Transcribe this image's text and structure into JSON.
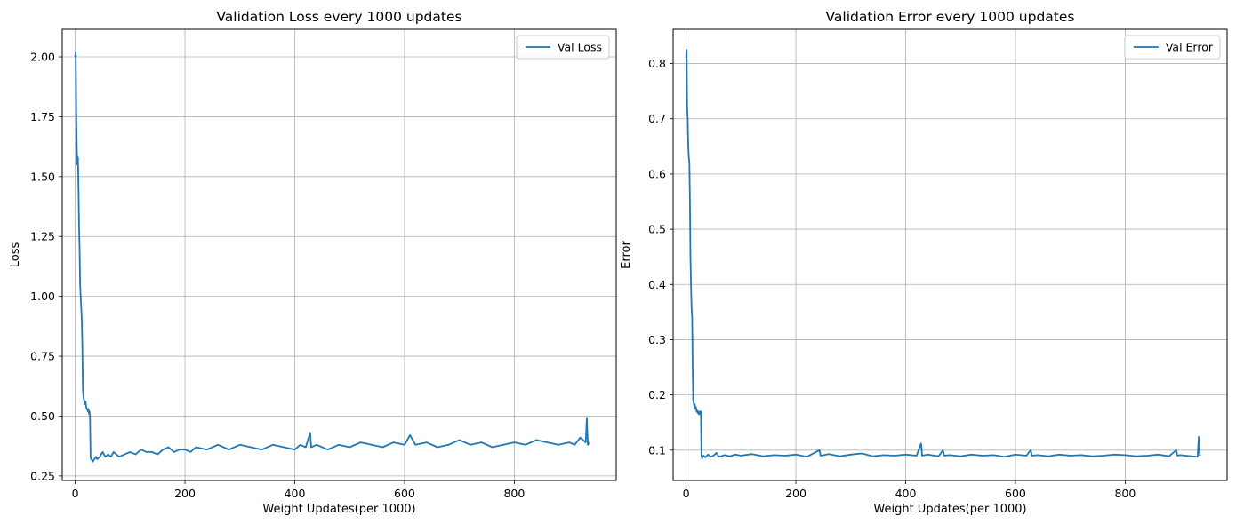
{
  "chart_data": [
    {
      "type": "line",
      "title": "Validation Loss every 1000 updates",
      "xlabel": "Weight Updates(per 1000)",
      "ylabel": "Loss",
      "xlim": [
        -23.6,
        985.6
      ],
      "ylim": [
        0.231,
        2.115
      ],
      "xticks": [
        0,
        200,
        400,
        600,
        800
      ],
      "xtick_labels": [
        "0",
        "200",
        "400",
        "600",
        "800"
      ],
      "yticks": [
        0.25,
        0.5,
        0.75,
        1.0,
        1.25,
        1.5,
        1.75,
        2.0
      ],
      "ytick_labels": [
        "0.25",
        "0.50",
        "0.75",
        "1.00",
        "1.25",
        "1.50",
        "1.75",
        "2.00"
      ],
      "grid": true,
      "legend_position": "upper right",
      "color": "#1f77b4",
      "series": [
        {
          "name": "Val Loss",
          "x": [
            0,
            1,
            2,
            3,
            4,
            5,
            6,
            7,
            8,
            9,
            10,
            11,
            12,
            13,
            14,
            15,
            16,
            17,
            18,
            19,
            20,
            21,
            22,
            23,
            24,
            25,
            26,
            27,
            28,
            29,
            30,
            32,
            35,
            38,
            40,
            45,
            50,
            55,
            60,
            65,
            70,
            75,
            80,
            90,
            100,
            110,
            120,
            130,
            140,
            150,
            160,
            170,
            180,
            190,
            200,
            210,
            220,
            240,
            250,
            260,
            280,
            300,
            320,
            340,
            360,
            380,
            400,
            410,
            420,
            428,
            430,
            440,
            460,
            480,
            500,
            520,
            540,
            560,
            580,
            600,
            610,
            620,
            640,
            660,
            680,
            700,
            720,
            740,
            760,
            780,
            800,
            820,
            840,
            860,
            880,
            900,
            910,
            920,
            930,
            932,
            934,
            936
          ],
          "y": [
            2.0,
            2.02,
            1.75,
            1.62,
            1.55,
            1.58,
            1.45,
            1.3,
            1.2,
            1.05,
            1.0,
            0.95,
            0.9,
            0.8,
            0.62,
            0.58,
            0.57,
            0.56,
            0.55,
            0.56,
            0.54,
            0.53,
            0.53,
            0.52,
            0.53,
            0.51,
            0.52,
            0.5,
            0.33,
            0.32,
            0.32,
            0.31,
            0.32,
            0.33,
            0.32,
            0.33,
            0.35,
            0.33,
            0.34,
            0.33,
            0.35,
            0.34,
            0.33,
            0.34,
            0.35,
            0.34,
            0.36,
            0.35,
            0.35,
            0.34,
            0.36,
            0.37,
            0.35,
            0.36,
            0.36,
            0.35,
            0.37,
            0.36,
            0.37,
            0.38,
            0.36,
            0.38,
            0.37,
            0.36,
            0.38,
            0.37,
            0.36,
            0.38,
            0.37,
            0.43,
            0.37,
            0.38,
            0.36,
            0.38,
            0.37,
            0.39,
            0.38,
            0.37,
            0.39,
            0.38,
            0.42,
            0.38,
            0.39,
            0.37,
            0.38,
            0.4,
            0.38,
            0.39,
            0.37,
            0.38,
            0.39,
            0.38,
            0.4,
            0.39,
            0.38,
            0.39,
            0.38,
            0.41,
            0.39,
            0.49,
            0.38,
            0.39
          ]
        }
      ]
    },
    {
      "type": "line",
      "title": "Validation Error every 1000 updates",
      "xlabel": "Weight Updates(per 1000)",
      "ylabel": "Error",
      "xlim": [
        -23.6,
        985.6
      ],
      "ylim": [
        0.045,
        0.862
      ],
      "xticks": [
        0,
        200,
        400,
        600,
        800
      ],
      "xtick_labels": [
        "0",
        "200",
        "400",
        "600",
        "800"
      ],
      "yticks": [
        0.1,
        0.2,
        0.3,
        0.4,
        0.5,
        0.6,
        0.7,
        0.8
      ],
      "ytick_labels": [
        "0.1",
        "0.2",
        "0.3",
        "0.4",
        "0.5",
        "0.6",
        "0.7",
        "0.8"
      ],
      "grid": true,
      "legend_position": "upper right",
      "color": "#1f77b4",
      "series": [
        {
          "name": "Val Error",
          "x": [
            0,
            1,
            2,
            3,
            4,
            5,
            6,
            7,
            8,
            9,
            10,
            11,
            12,
            13,
            14,
            15,
            16,
            17,
            18,
            19,
            20,
            21,
            22,
            23,
            24,
            25,
            26,
            27,
            28,
            29,
            30,
            32,
            35,
            40,
            45,
            50,
            55,
            60,
            70,
            80,
            90,
            100,
            120,
            140,
            160,
            180,
            200,
            220,
            243,
            245,
            260,
            280,
            300,
            320,
            340,
            360,
            380,
            400,
            420,
            428,
            430,
            440,
            460,
            468,
            470,
            480,
            500,
            520,
            540,
            560,
            580,
            600,
            620,
            628,
            630,
            640,
            660,
            680,
            700,
            720,
            740,
            760,
            780,
            800,
            820,
            840,
            860,
            880,
            893,
            895,
            900,
            920,
            932,
            934,
            936
          ],
          "y": [
            0.81,
            0.825,
            0.72,
            0.7,
            0.65,
            0.63,
            0.62,
            0.55,
            0.45,
            0.4,
            0.36,
            0.34,
            0.25,
            0.19,
            0.185,
            0.18,
            0.183,
            0.175,
            0.178,
            0.17,
            0.172,
            0.168,
            0.17,
            0.165,
            0.168,
            0.17,
            0.165,
            0.17,
            0.09,
            0.085,
            0.088,
            0.09,
            0.087,
            0.092,
            0.088,
            0.09,
            0.095,
            0.088,
            0.091,
            0.089,
            0.092,
            0.09,
            0.093,
            0.089,
            0.091,
            0.09,
            0.092,
            0.088,
            0.1,
            0.09,
            0.093,
            0.089,
            0.092,
            0.094,
            0.089,
            0.091,
            0.09,
            0.092,
            0.09,
            0.112,
            0.09,
            0.092,
            0.089,
            0.1,
            0.09,
            0.091,
            0.089,
            0.092,
            0.09,
            0.091,
            0.088,
            0.092,
            0.09,
            0.1,
            0.09,
            0.091,
            0.089,
            0.092,
            0.09,
            0.091,
            0.089,
            0.09,
            0.092,
            0.091,
            0.089,
            0.09,
            0.092,
            0.089,
            0.1,
            0.09,
            0.091,
            0.089,
            0.088,
            0.124,
            0.09
          ]
        }
      ]
    }
  ]
}
